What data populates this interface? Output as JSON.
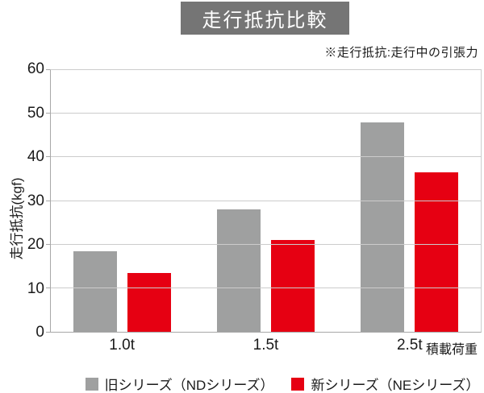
{
  "title": "走行抵抗比較",
  "note": "※走行抵抗:走行中の引張力",
  "chart_data": {
    "type": "bar",
    "categories": [
      "1.0t",
      "1.5t",
      "2.5t"
    ],
    "series": [
      {
        "name": "旧シリーズ（NDシリーズ）",
        "color": "#9fa0a0",
        "values": [
          18.5,
          28,
          48
        ]
      },
      {
        "name": "新シリーズ（NEシリーズ）",
        "color": "#e60012",
        "values": [
          13.5,
          21,
          36.5
        ]
      }
    ],
    "title": "走行抵抗比較",
    "xlabel": "積載荷重",
    "ylabel": "走行抵抗(kgf)",
    "ylim": [
      0,
      60
    ],
    "ytick_step": 10,
    "grid": true,
    "legend_position": "bottom"
  },
  "colors": {
    "title_bg": "#757575",
    "title_text": "#ffffff",
    "axis": "#a8a8a8",
    "grid": "#cccccc",
    "text": "#1a1a1a",
    "background": "#ffffff"
  }
}
